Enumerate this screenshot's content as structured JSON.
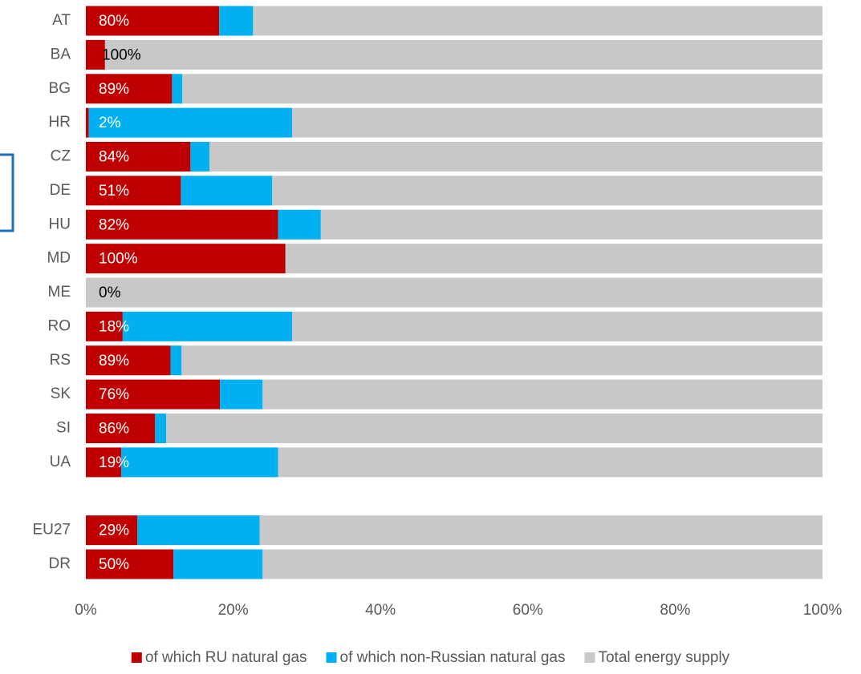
{
  "chart_data": {
    "type": "stacked-bar-horizontal",
    "categories": [
      "AT",
      "BA",
      "BG",
      "HR",
      "CZ",
      "DE",
      "HU",
      "MD",
      "ME",
      "RO",
      "RS",
      "SK",
      "SI",
      "UA",
      null,
      "EU27",
      "DR"
    ],
    "series": [
      {
        "name": "of which RU natural gas",
        "color": "#c00000",
        "values": [
          18.1,
          2.6,
          11.7,
          0.4,
          14.2,
          12.9,
          26.1,
          27.1,
          0,
          5.0,
          11.5,
          18.2,
          9.4,
          4.8,
          null,
          7.0,
          11.9
        ]
      },
      {
        "name": "of which non-Russian natural gas",
        "color": "#00b0f0",
        "values": [
          4.6,
          0,
          1.4,
          27.6,
          2.6,
          12.4,
          5.8,
          0,
          0,
          23.0,
          1.5,
          5.8,
          1.5,
          21.3,
          null,
          16.6,
          12.1
        ]
      },
      {
        "name": "Total energy supply",
        "color": "#c8c8c8",
        "values": [
          77.3,
          97.4,
          86.9,
          72.0,
          83.2,
          74.7,
          68.1,
          72.9,
          100,
          72.0,
          87.0,
          76.0,
          89.1,
          73.9,
          null,
          76.4,
          76.0
        ]
      }
    ],
    "ru_share_labels": [
      "80%",
      "100%",
      "89%",
      "2%",
      "84%",
      "51%",
      "82%",
      "100%",
      "0%",
      "18%",
      "89%",
      "76%",
      "86%",
      "19%",
      null,
      "29%",
      "50%"
    ],
    "xlim": [
      0,
      100
    ],
    "xticks": [
      {
        "value": 0,
        "label": "0%"
      },
      {
        "value": 20,
        "label": "20%"
      },
      {
        "value": 40,
        "label": "40%"
      },
      {
        "value": 60,
        "label": "60%"
      },
      {
        "value": 80,
        "label": "80%"
      },
      {
        "value": 100,
        "label": "100%"
      }
    ],
    "legend": "bottom"
  }
}
